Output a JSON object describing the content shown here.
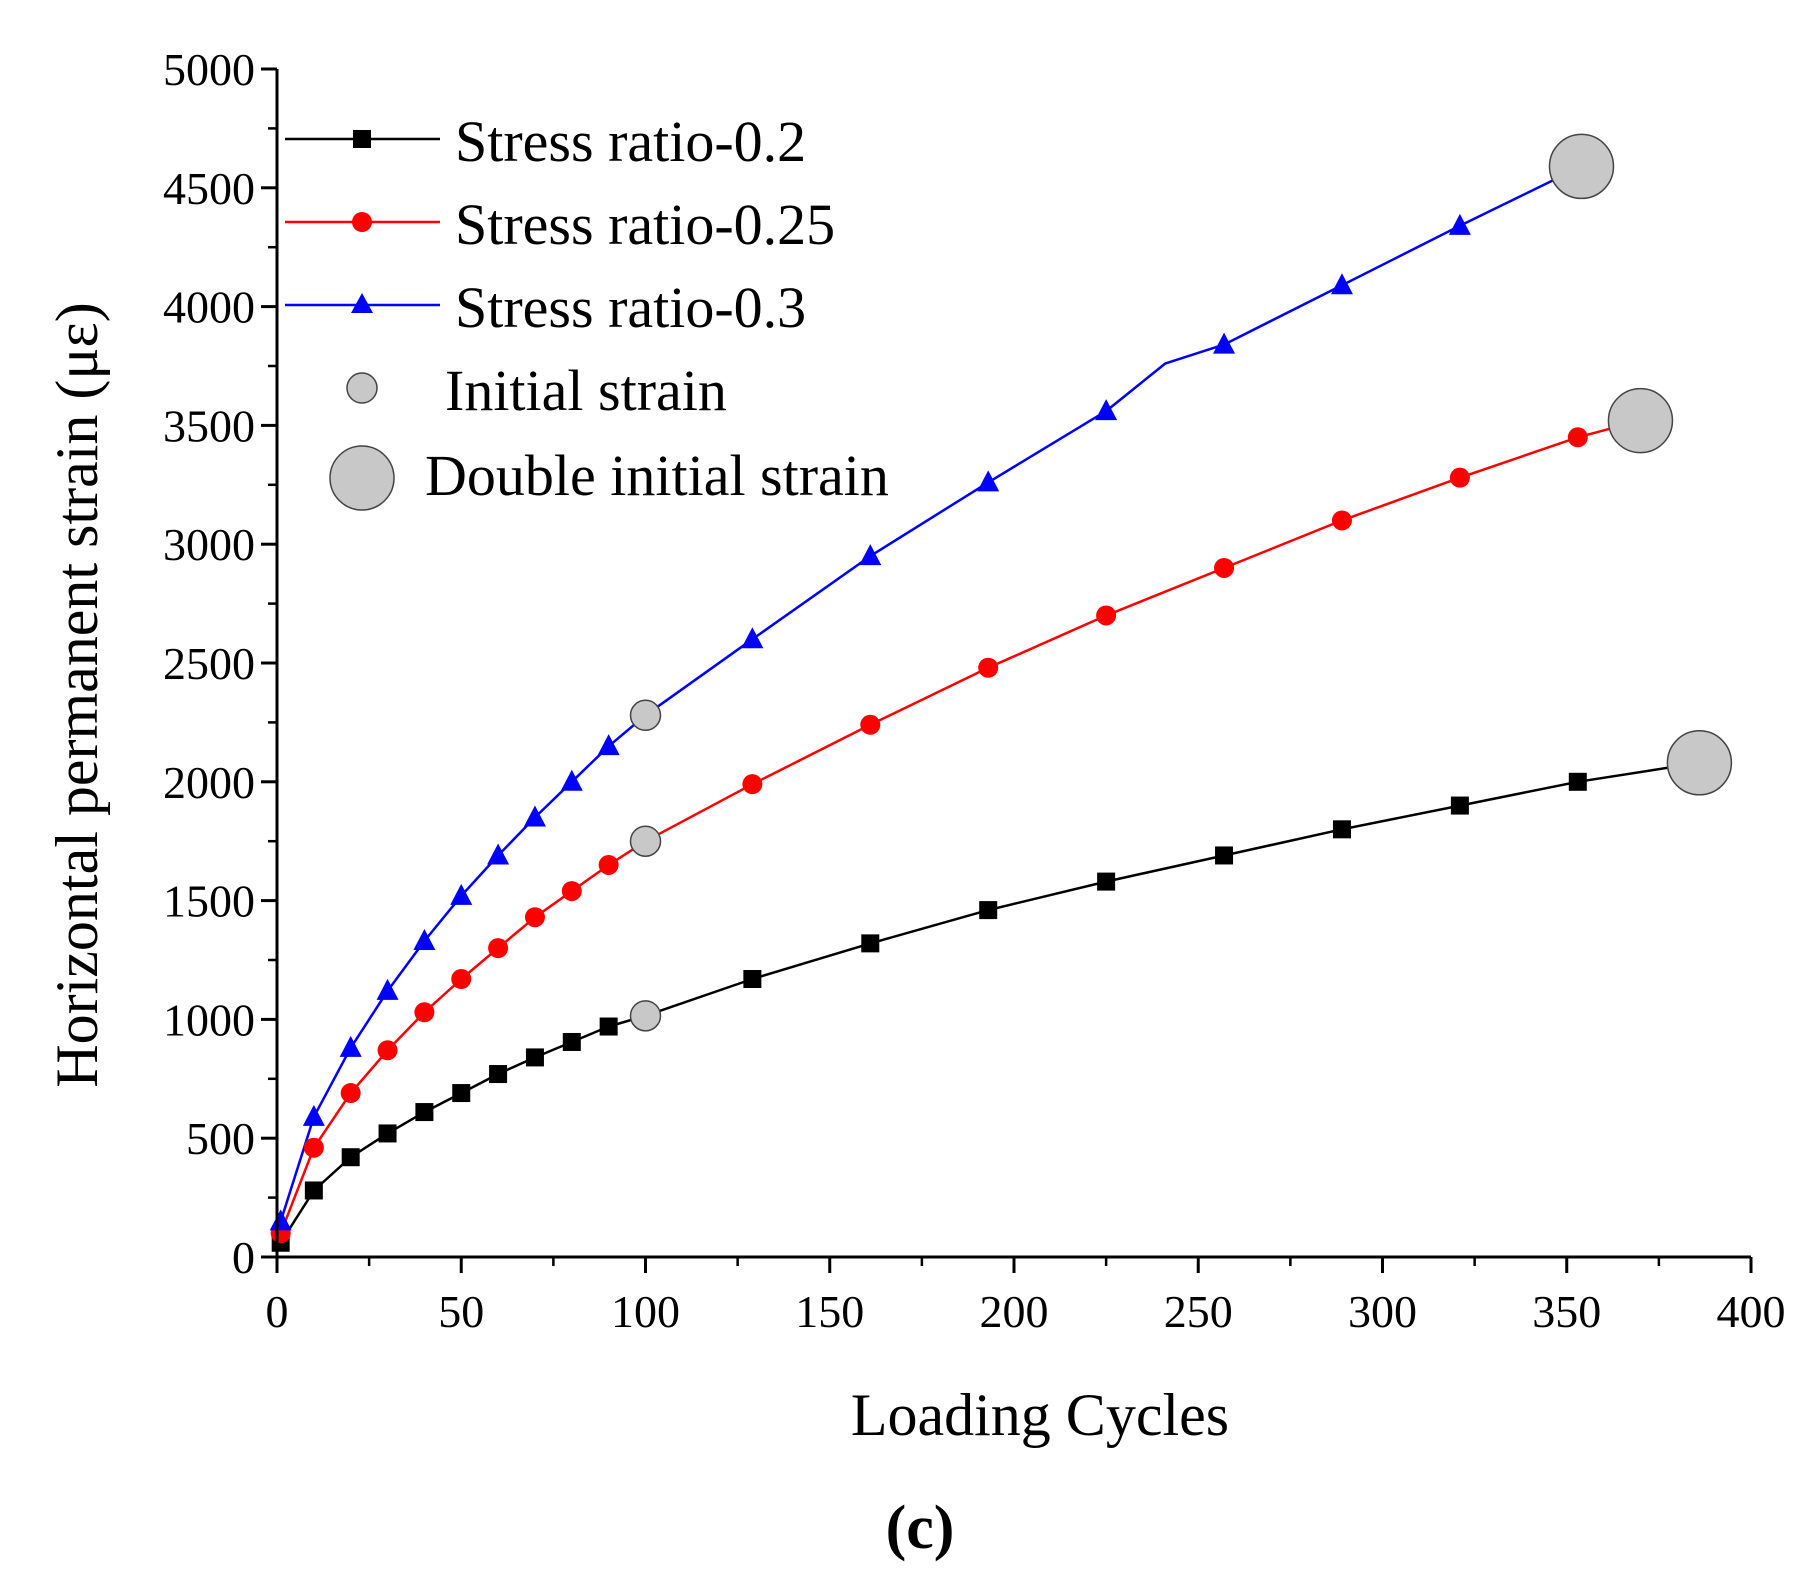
{
  "chart_data": {
    "type": "line",
    "xlabel": "Loading Cycles",
    "ylabel": "Horizontal permanent strain (με)",
    "xlim": [
      0,
      400
    ],
    "ylim": [
      0,
      5000
    ],
    "xticks": [
      0,
      50,
      100,
      150,
      200,
      250,
      300,
      350,
      400
    ],
    "yticks": [
      0,
      500,
      1000,
      1500,
      2000,
      2500,
      3000,
      3500,
      4000,
      4500,
      5000
    ],
    "x_minor_step": 25,
    "y_minor_step": 250,
    "grid": false,
    "legend_position": "top-left",
    "panel_label": "(c)",
    "series": [
      {
        "name": "Stress ratio-0.2",
        "color": "#000000",
        "marker": "square",
        "x": [
          1,
          10,
          20,
          30,
          40,
          50,
          60,
          70,
          80,
          90,
          100,
          129,
          161,
          193,
          225,
          257,
          289,
          321,
          353,
          386
        ],
        "y": [
          60,
          280,
          420,
          520,
          610,
          690,
          770,
          840,
          905,
          970,
          1015,
          1170,
          1320,
          1460,
          1580,
          1690,
          1800,
          1900,
          2000,
          2080
        ],
        "marker_x": [
          1,
          10,
          20,
          30,
          40,
          50,
          60,
          70,
          80,
          90,
          129,
          161,
          193,
          225,
          257,
          289,
          321,
          353
        ],
        "marker_y": [
          60,
          280,
          420,
          520,
          610,
          690,
          770,
          840,
          905,
          970,
          1170,
          1320,
          1460,
          1580,
          1690,
          1800,
          1900,
          2000
        ]
      },
      {
        "name": "Stress ratio-0.25",
        "color": "#ff0000",
        "marker": "circle",
        "x": [
          1,
          10,
          20,
          30,
          40,
          50,
          60,
          70,
          80,
          90,
          100,
          129,
          161,
          193,
          225,
          257,
          289,
          321,
          353,
          370
        ],
        "y": [
          100,
          460,
          690,
          870,
          1030,
          1170,
          1300,
          1430,
          1540,
          1650,
          1750,
          1990,
          2240,
          2480,
          2700,
          2900,
          3100,
          3280,
          3450,
          3520
        ],
        "marker_x": [
          1,
          10,
          20,
          30,
          40,
          50,
          60,
          70,
          80,
          90,
          129,
          161,
          193,
          225,
          257,
          289,
          321,
          353
        ],
        "marker_y": [
          100,
          460,
          690,
          870,
          1030,
          1170,
          1300,
          1430,
          1540,
          1650,
          1990,
          2240,
          2480,
          2700,
          2900,
          3100,
          3280,
          3450
        ]
      },
      {
        "name": "Stress ratio-0.3",
        "color": "#0000ff",
        "marker": "triangle",
        "x": [
          1,
          10,
          20,
          30,
          40,
          50,
          60,
          70,
          80,
          90,
          100,
          129,
          161,
          193,
          225,
          241,
          257,
          289,
          321,
          354
        ],
        "y": [
          150,
          590,
          880,
          1120,
          1330,
          1520,
          1690,
          1850,
          2000,
          2150,
          2280,
          2600,
          2950,
          3260,
          3560,
          3760,
          3840,
          4090,
          4340,
          4590
        ],
        "marker_x": [
          1,
          10,
          20,
          30,
          40,
          50,
          60,
          70,
          80,
          90,
          129,
          161,
          193,
          225,
          257,
          289,
          321
        ],
        "marker_y": [
          150,
          590,
          880,
          1120,
          1330,
          1520,
          1690,
          1850,
          2000,
          2150,
          2600,
          2950,
          3260,
          3560,
          3840,
          4090,
          4340
        ]
      }
    ],
    "initial_strain": {
      "name": "Initial strain",
      "color": "#c8c8c8",
      "x": [
        100,
        100,
        100
      ],
      "y": [
        1015,
        1750,
        2280
      ]
    },
    "double_initial_strain": {
      "name": "Double initial strain",
      "color": "#c8c8c8",
      "x": [
        386,
        370,
        354
      ],
      "y": [
        2080,
        3520,
        4590
      ]
    }
  }
}
